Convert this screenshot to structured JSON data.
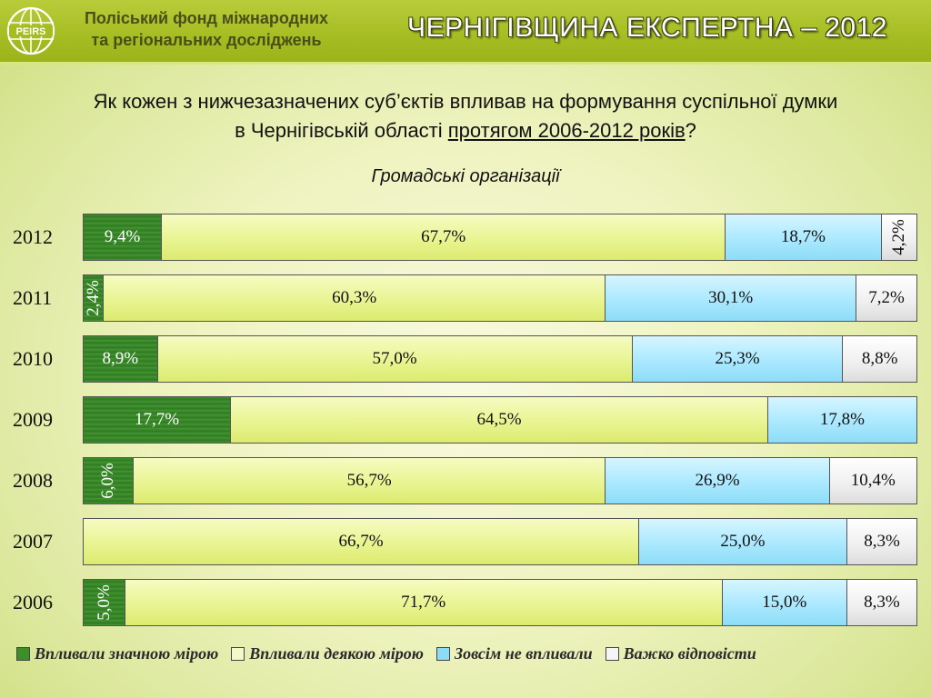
{
  "header": {
    "logo_text": "PEIRS",
    "org_line1": "Поліський фонд міжнародних",
    "org_line2": "та регіональних досліджень",
    "banner": "ЧЕРНІГІВЩИНА ЕКСПЕРТНА – 2012"
  },
  "question": {
    "line1": "Як кожен з нижчезазначених суб’єктів впливав на формування суспільної думки",
    "line2_start": "в Чернігівській області ",
    "line2_underlined": "протягом 2006-2012 років",
    "line2_end": "?"
  },
  "colors": {
    "significant": "#3e8e2c",
    "some": "#eaf596",
    "none": "#aeeaff",
    "hard": "#efefef"
  },
  "chart_data": {
    "type": "bar",
    "orientation": "horizontal",
    "stacked": true,
    "normalized": true,
    "title": "Громадські організації",
    "categories": [
      "2012",
      "2011",
      "2010",
      "2009",
      "2008",
      "2007",
      "2006"
    ],
    "series": [
      {
        "name": "Впливали значною мірою",
        "values": [
          9.4,
          2.4,
          8.9,
          17.7,
          6.0,
          0,
          5.0
        ],
        "labels": [
          "9,4%",
          "2,4%",
          "8,9%",
          "17,7%",
          "6,0%",
          "",
          "5,0%"
        ],
        "vertical_label": [
          false,
          true,
          false,
          false,
          true,
          false,
          true
        ]
      },
      {
        "name": "Впливали деякою мірою",
        "values": [
          67.7,
          60.3,
          57.0,
          64.5,
          56.7,
          66.7,
          71.7
        ],
        "labels": [
          "67,7%",
          "60,3%",
          "57,0%",
          "64,5%",
          "56,7%",
          "66,7%",
          "71,7%"
        ],
        "vertical_label": [
          false,
          false,
          false,
          false,
          false,
          false,
          false
        ]
      },
      {
        "name": "Зовсім не впливали",
        "values": [
          18.7,
          30.1,
          25.3,
          17.8,
          26.9,
          25.0,
          15.0
        ],
        "labels": [
          "18,7%",
          "30,1%",
          "25,3%",
          "17,8%",
          "26,9%",
          "25,0%",
          "15,0%"
        ],
        "vertical_label": [
          false,
          false,
          false,
          false,
          false,
          false,
          false
        ]
      },
      {
        "name": "Важко відповісти",
        "values": [
          4.2,
          7.2,
          8.8,
          0,
          10.4,
          8.3,
          8.3
        ],
        "labels": [
          "4,2%",
          "7,2%",
          "8,8%",
          "",
          "10,4%",
          "8,3%",
          "8,3%"
        ],
        "vertical_label": [
          true,
          false,
          false,
          false,
          false,
          false,
          false
        ]
      }
    ],
    "legend_position": "bottom"
  }
}
